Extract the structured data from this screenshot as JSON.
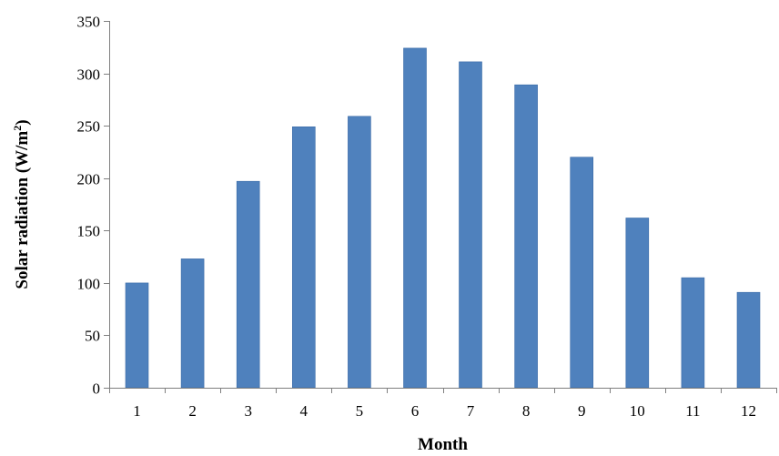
{
  "chart_data": {
    "type": "bar",
    "title": "",
    "xlabel": "Month",
    "ylabel_main": "Solar radiation (W/m",
    "ylabel_sup": "2",
    "ylabel_close": ")",
    "categories": [
      "1",
      "2",
      "3",
      "4",
      "5",
      "6",
      "7",
      "8",
      "9",
      "10",
      "11",
      "12"
    ],
    "values": [
      100,
      123,
      197,
      249,
      259,
      324,
      311,
      289,
      220,
      162,
      105,
      91
    ],
    "ylim": [
      0,
      350
    ],
    "yticks": [
      0,
      50,
      100,
      150,
      200,
      250,
      300,
      350
    ],
    "ytick_labels": [
      "0",
      "50",
      "100",
      "150",
      "200",
      "250",
      "300",
      "350"
    ],
    "grid": false,
    "legend": "none",
    "bar_color": "#4f81bd",
    "bar_edge_color": "#3a6aa6"
  }
}
